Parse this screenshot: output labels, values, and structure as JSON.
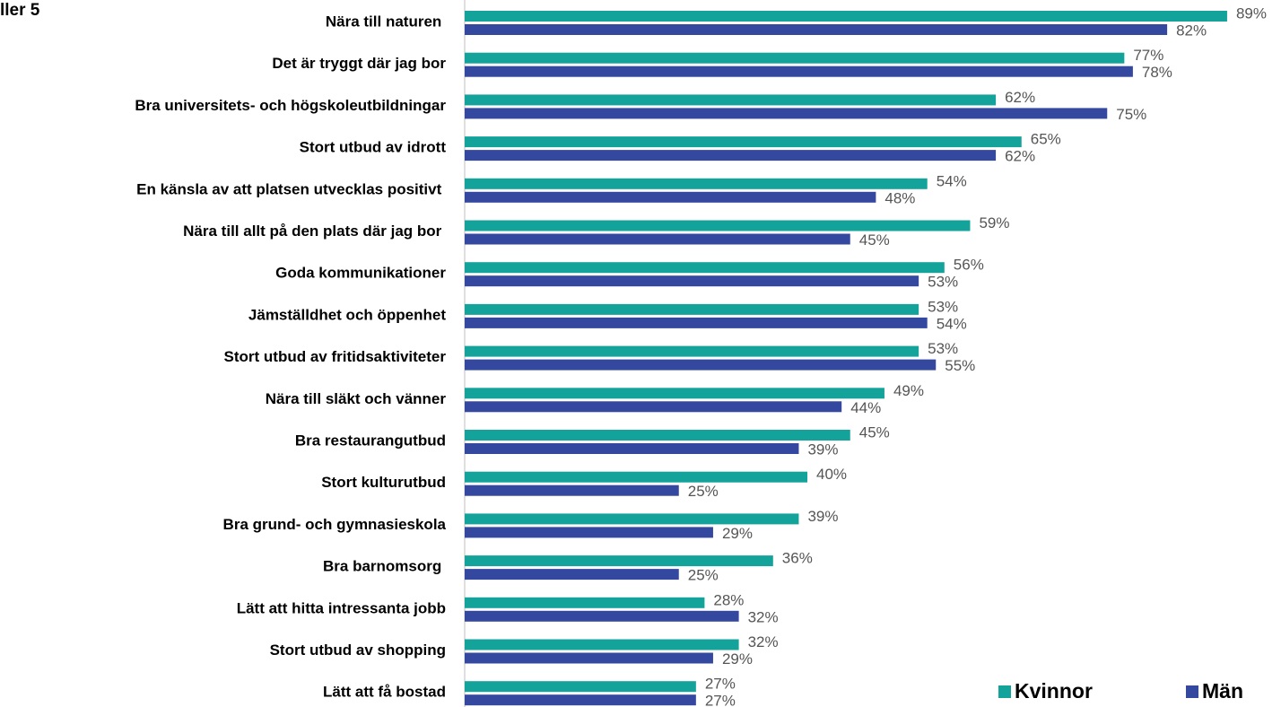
{
  "chart_data": {
    "type": "barh",
    "title": "ller 5",
    "categories": [
      "Nära till naturen ",
      "Det är tryggt där jag bor",
      "Bra universitets- och högskoleutbildningar",
      "Stort utbud av idrott",
      "En känsla av att platsen utvecklas positivt ",
      "Nära till allt på den plats där jag bor ",
      "Goda kommunikationer",
      "Jämställdhet och öppenhet",
      "Stort utbud av fritidsaktiviteter",
      "Nära till släkt och vänner",
      "Bra restaurangutbud",
      "Stort kulturutbud",
      "Bra grund- och gymnasieskola",
      "Bra barnomsorg ",
      "Lätt att hitta intressanta jobb",
      "Stort utbud av shopping",
      "Lätt att få bostad"
    ],
    "series": [
      {
        "name": "Kvinnor",
        "color": "#14a39a",
        "values": [
          89,
          77,
          62,
          65,
          54,
          59,
          56,
          53,
          53,
          49,
          45,
          40,
          39,
          36,
          28,
          32,
          27
        ],
        "value_labels": [
          "89%",
          "77%",
          "62%",
          "65%",
          "54%",
          "59%",
          "56%",
          "53%",
          "53%",
          "49%",
          "45%",
          "40%",
          "39%",
          "36%",
          "28%",
          "32%",
          "27%"
        ]
      },
      {
        "name": "Män",
        "color": "#3548a0",
        "values": [
          82,
          78,
          75,
          62,
          48,
          45,
          53,
          54,
          55,
          44,
          39,
          25,
          29,
          25,
          32,
          29,
          27
        ],
        "value_labels": [
          "82%",
          "78%",
          "75%",
          "62%",
          "48%",
          "45%",
          "53%",
          "54%",
          "55%",
          "44%",
          "39%",
          "25%",
          "29%",
          "25%",
          "32%",
          "29%",
          "27%"
        ]
      }
    ],
    "xlim": [
      0,
      100
    ],
    "legend": "bottom-right"
  }
}
